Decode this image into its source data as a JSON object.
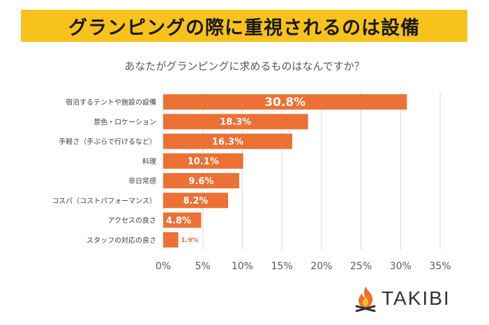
{
  "banner": {
    "title": "グランピングの際に重視されるのは設備"
  },
  "subtitle": "あなたがグランピングに求めるものはなんですか？",
  "logo": {
    "text": "TAKIBI",
    "icon": "campfire-icon"
  },
  "colors": {
    "bar": "#ed7034",
    "banner": "#f7c21b",
    "grid": "#d9d9d9",
    "tick": "#595959"
  },
  "chart_data": {
    "type": "bar",
    "orientation": "horizontal",
    "title": "",
    "categories": [
      "宿泊するテントや施設の設備",
      "景色・ロケーション",
      "手軽さ（手ぶらで行けるなど）",
      "料理",
      "非日常感",
      "コスパ（コストパフォーマンス）",
      "アクセスの良さ",
      "スタッフの対応の良さ"
    ],
    "values": [
      30.8,
      18.3,
      16.3,
      10.1,
      9.6,
      8.2,
      4.8,
      1.9
    ],
    "data_labels": [
      "30.8%",
      "18.3%",
      "16.3%",
      "10.1%",
      "9.6%",
      "8.2%",
      "4.8%",
      "1.9%"
    ],
    "xlim": [
      0,
      35
    ],
    "xticks": [
      0,
      5,
      10,
      15,
      20,
      25,
      30,
      35
    ],
    "xtick_labels": [
      "0%",
      "5%",
      "10%",
      "15%",
      "20%",
      "25%",
      "30%",
      "35%"
    ],
    "xlabel": "",
    "ylabel": "",
    "grid": true
  }
}
